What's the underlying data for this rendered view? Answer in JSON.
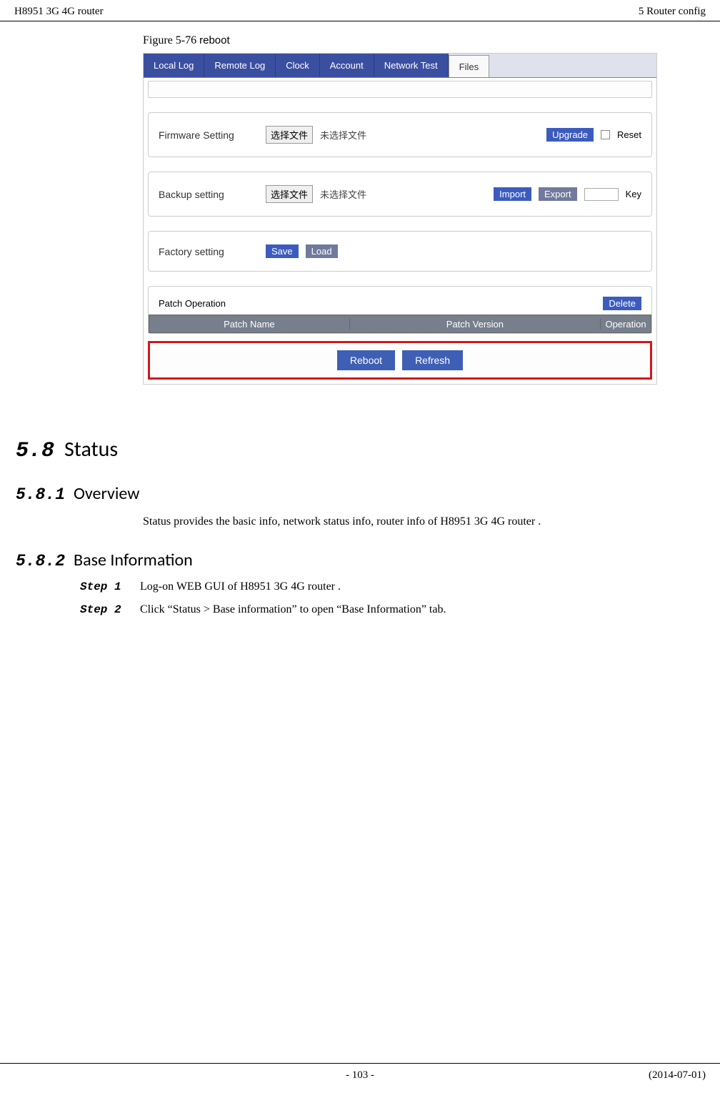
{
  "header": {
    "left": "H8951 3G 4G router",
    "right": "5  Router config"
  },
  "figure": {
    "caption_prefix": "Figure 5-76  ",
    "caption_word": "reboot"
  },
  "screenshot": {
    "tabs": [
      "Local Log",
      "Remote Log",
      "Clock",
      "Account",
      "Network Test",
      "Files"
    ],
    "active_tab_index": 5,
    "firmware": {
      "label": "Firmware Setting",
      "file_btn": "选择文件",
      "file_hint": "未选择文件",
      "upgrade_btn": "Upgrade",
      "reset_label": "Reset"
    },
    "backup": {
      "label": "Backup setting",
      "file_btn": "选择文件",
      "file_hint": "未选择文件",
      "import_btn": "Import",
      "export_btn": "Export",
      "key_label": "Key"
    },
    "factory": {
      "label": "Factory setting",
      "save_btn": "Save",
      "load_btn": "Load"
    },
    "patch": {
      "label": "Patch Operation",
      "delete_btn": "Delete",
      "col_name": "Patch Name",
      "col_version": "Patch Version",
      "col_operation": "Operation"
    },
    "footer": {
      "reboot_btn": "Reboot",
      "refresh_btn": "Refresh"
    }
  },
  "sections": {
    "status": {
      "num": "5.8",
      "title": "Status"
    },
    "overview": {
      "num": "5.8.1",
      "title": "Overview",
      "body": "Status provides the basic info, network status info, router info of H8951 3G 4G router ."
    },
    "baseinfo": {
      "num": "5.8.2",
      "title": "Base Information",
      "steps": [
        {
          "label": "Step 1",
          "text": "Log-on WEB GUI of H8951 3G 4G router ."
        },
        {
          "label": "Step 2",
          "text": "Click “Status > Base information” to open “Base Information” tab."
        }
      ]
    }
  },
  "footer": {
    "page": "- 103 -",
    "date": "(2014-07-01)"
  }
}
